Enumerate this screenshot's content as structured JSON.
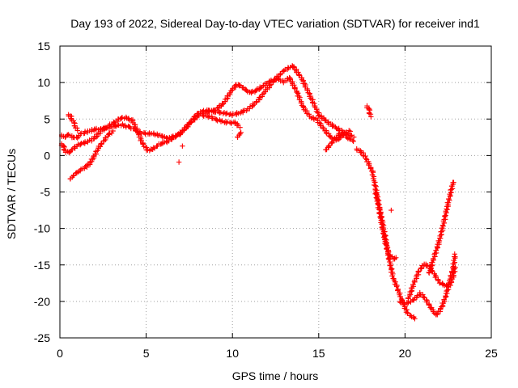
{
  "chart_data": {
    "type": "scatter",
    "title": "Day 193 of 2022, Sidereal Day-to-day VTEC variation (SDTVAR) for receiver ind1",
    "xlabel": "GPS time / hours",
    "ylabel": "SDTVAR / TECUs",
    "xlim": [
      0,
      25
    ],
    "ylim": [
      -25,
      15
    ],
    "xticks": [
      "0",
      "5",
      "10",
      "15",
      "20",
      "25"
    ],
    "yticks": [
      "-25",
      "-20",
      "-15",
      "-10",
      "-5",
      "0",
      "5",
      "10",
      "15"
    ],
    "grid": true,
    "marker": "plus",
    "color": "#ff0000",
    "series": [
      {
        "x": [
          0.1,
          0.2,
          0.3,
          0.4,
          0.5,
          0.6,
          0.8,
          1.0,
          1.2,
          1.5,
          1.8,
          2.0,
          2.3,
          2.6,
          3.0,
          3.3,
          3.6,
          4.0,
          4.3,
          4.6,
          5.0,
          5.4,
          5.8,
          6.2,
          6.6,
          7.0,
          7.5,
          8.0,
          8.5,
          9.0,
          9.5,
          10.0,
          10.5,
          11.0,
          11.5,
          12.0,
          12.5,
          13.0,
          13.5,
          14.0,
          14.5,
          15.0,
          15.5,
          16.0,
          16.5,
          17.0
        ],
        "y": [
          2.8,
          2.6,
          2.5,
          2.7,
          2.9,
          2.8,
          2.4,
          2.5,
          2.9,
          3.2,
          3.4,
          3.6,
          3.6,
          3.7,
          3.9,
          4.1,
          4.2,
          3.9,
          3.6,
          3.2,
          3.0,
          3.0,
          2.7,
          2.4,
          2.6,
          3.0,
          4.4,
          5.8,
          6.2,
          6.0,
          5.8,
          5.6,
          5.9,
          6.5,
          7.6,
          9.1,
          10.5,
          11.7,
          12.3,
          10.6,
          8.2,
          5.6,
          4.6,
          3.8,
          3.1,
          2.6
        ]
      },
      {
        "x": [
          0.1,
          0.2,
          0.3,
          0.5,
          0.7,
          0.9,
          1.2,
          1.5,
          1.8,
          2.1,
          2.4,
          2.8,
          3.2,
          3.5,
          3.8,
          4.2,
          4.5,
          4.8,
          5.1,
          5.4,
          5.8,
          6.2,
          6.6,
          7.0,
          7.5,
          8.0,
          8.5,
          9.0,
          9.5,
          10.0,
          10.3,
          10.6,
          11.0,
          11.4,
          11.8,
          12.2,
          12.6,
          13.0,
          13.3,
          13.7,
          14.1,
          14.5,
          14.9,
          15.3,
          15.7,
          16.1,
          16.5,
          16.8
        ],
        "y": [
          1.6,
          1.2,
          0.6,
          0.4,
          0.7,
          1.2,
          1.6,
          1.8,
          2.1,
          2.6,
          3.4,
          4.0,
          4.6,
          5.1,
          5.2,
          4.8,
          3.3,
          1.6,
          0.7,
          0.9,
          1.6,
          1.9,
          2.4,
          3.1,
          4.3,
          5.5,
          6.0,
          6.2,
          7.2,
          9.1,
          9.8,
          9.3,
          8.6,
          8.9,
          9.6,
          10.2,
          10.5,
          10.1,
          10.7,
          8.9,
          6.6,
          5.3,
          4.9,
          3.6,
          2.5,
          2.1,
          3.1,
          3.4
        ]
      },
      {
        "x": [
          0.6,
          0.7,
          0.8,
          0.9,
          1.0,
          1.1,
          1.2,
          1.3,
          1.4,
          1.5,
          1.6,
          1.8,
          2.0,
          2.2,
          2.5,
          2.8,
          3.1
        ],
        "y": [
          -3.2,
          -3.0,
          -2.7,
          -2.5,
          -2.3,
          -2.2,
          -2.0,
          -1.8,
          -1.7,
          -1.6,
          -1.4,
          -0.9,
          0.0,
          0.9,
          1.9,
          2.8,
          3.4
        ]
      },
      {
        "x": [
          0.5,
          0.6,
          0.7,
          0.8,
          0.9,
          1.0
        ],
        "y": [
          5.6,
          5.4,
          5.0,
          4.5,
          4.0,
          3.5
        ]
      },
      {
        "x": [
          8.3,
          8.7,
          9.1,
          9.5,
          9.9,
          10.2,
          10.4
        ],
        "y": [
          5.5,
          5.3,
          4.9,
          4.6,
          4.5,
          4.5,
          3.9
        ]
      },
      {
        "x": [
          10.3,
          10.4,
          10.5
        ],
        "y": [
          2.5,
          2.9,
          3.2
        ]
      },
      {
        "x": [
          15.4,
          15.5,
          15.6,
          15.8,
          16.0,
          16.2,
          16.4,
          16.6,
          16.8,
          17.0
        ],
        "y": [
          0.8,
          0.9,
          1.3,
          1.9,
          2.4,
          3.0,
          2.8,
          2.6,
          2.2,
          2.0
        ]
      },
      {
        "x": [
          17.8,
          17.9,
          18.0
        ],
        "y": [
          6.8,
          6.3,
          5.4
        ]
      },
      {
        "x": [
          17.2,
          17.5,
          17.8,
          18.1,
          18.3,
          18.5,
          18.7,
          18.9,
          19.1,
          19.3,
          19.5,
          19.7,
          19.9,
          20.1,
          20.3,
          20.6
        ],
        "y": [
          0.9,
          0.4,
          -0.6,
          -2.2,
          -4.5,
          -7.0,
          -9.3,
          -11.8,
          -14.5,
          -16.6,
          -17.9,
          -19.1,
          -20.3,
          -21.4,
          -22.0,
          -22.3
        ]
      },
      {
        "x": [
          18.3,
          18.5,
          18.7,
          18.9,
          19.1,
          19.3,
          19.5
        ],
        "y": [
          -5.0,
          -7.4,
          -9.9,
          -12.3,
          -13.7,
          -14.1,
          -14.1
        ]
      },
      {
        "x": [
          19.7,
          20.0,
          20.3,
          20.6,
          20.9,
          21.2,
          21.5,
          21.8,
          22.1,
          22.4,
          22.6,
          22.8,
          22.9
        ],
        "y": [
          -20.0,
          -20.3,
          -20.1,
          -19.6,
          -18.9,
          -19.7,
          -20.9,
          -21.9,
          -21.0,
          -19.0,
          -17.2,
          -15.3,
          -13.6
        ]
      },
      {
        "x": [
          20.2,
          20.5,
          20.8,
          21.1,
          21.4,
          21.7,
          22.0,
          22.3,
          22.6,
          22.8,
          22.9
        ],
        "y": [
          -19.6,
          -17.6,
          -15.9,
          -14.9,
          -15.2,
          -16.3,
          -17.4,
          -17.8,
          -17.7,
          -16.5,
          -15.3
        ]
      },
      {
        "x": [
          21.4,
          21.6,
          21.8,
          22.0,
          22.2,
          22.4,
          22.6,
          22.8
        ],
        "y": [
          -16.1,
          -14.6,
          -13.1,
          -11.6,
          -9.7,
          -7.6,
          -5.5,
          -3.6
        ]
      },
      {
        "x": [
          19.2,
          6.9,
          7.1
        ],
        "y": [
          -7.5,
          -0.9,
          1.3
        ]
      }
    ]
  }
}
